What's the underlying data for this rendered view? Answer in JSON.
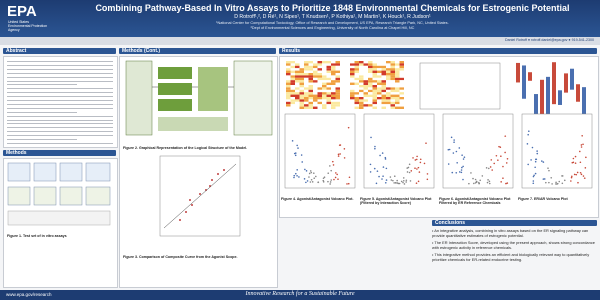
{
  "header": {
    "title": "Combining Pathway-Based In Vitro Assays to Prioritize 1848 Environmental Chemicals for Estrogenic Potential",
    "authors": "D Rotroff¹,², D Ré¹, N Sipes¹, T Knudsen¹, P Kothiya¹, M Martin¹, K Houck¹, R Judson¹",
    "affiliations": [
      "¹National Center for Computational Toxicology, Office of Research and Development, US EPA, Research Triangle Park, NC, United States.",
      "²Dept of Environmental Sciences and Engineering, University of North Carolina at Chapel Hill, NC"
    ],
    "contact": "Daniel Rotroff ● rotroff.daniel@epa.gov ● 919-541-2300"
  },
  "logo": {
    "mark": "EPA",
    "agency": [
      "United States",
      "Environmental Protection",
      "Agency"
    ]
  },
  "abstract": {
    "title": "Abstract"
  },
  "methods": {
    "title": "Methods",
    "caption": "Figure 1. Test set of in vitro assays"
  },
  "methods_cont": {
    "title": "Methods (Cont.)",
    "captions": [
      "Figure 2. Graphical Representation of the Logical Structure of the Model.",
      "Figure 3. Comparison of Composite Curve from the Agonist Scope."
    ]
  },
  "results": {
    "title": "Results",
    "captions": [
      "Figure 4. Agonist/Antagonist Volcano Plot.",
      "Figure 5. Agonist/Antagonist Volcano Plot (Filtered by Interaction Score)",
      "Figure 6. Agonist/Antagonist Volcano Plot Filtered by ER Reference Chemicals",
      "Figure 7. ER/AR Volcano Plot"
    ]
  },
  "conclusions": {
    "title": "Conclusions",
    "bullets": [
      "An integrative analysis, combining in vitro assays based on the ER signaling pathway can provide quantitative estimates of estrogenic potential.",
      "The ER Interaction Score, developed using the present approach, shows strong concordance with estrogenic activity in reference chemicals.",
      "This integrative method provides an efficient and biologically relevant way to quantitatively prioritize chemicals for ER-related endocrine testing."
    ]
  },
  "footer": {
    "url": "www.epa.gov/research",
    "tagline": "Innovative Research for a Sustainable Future"
  }
}
